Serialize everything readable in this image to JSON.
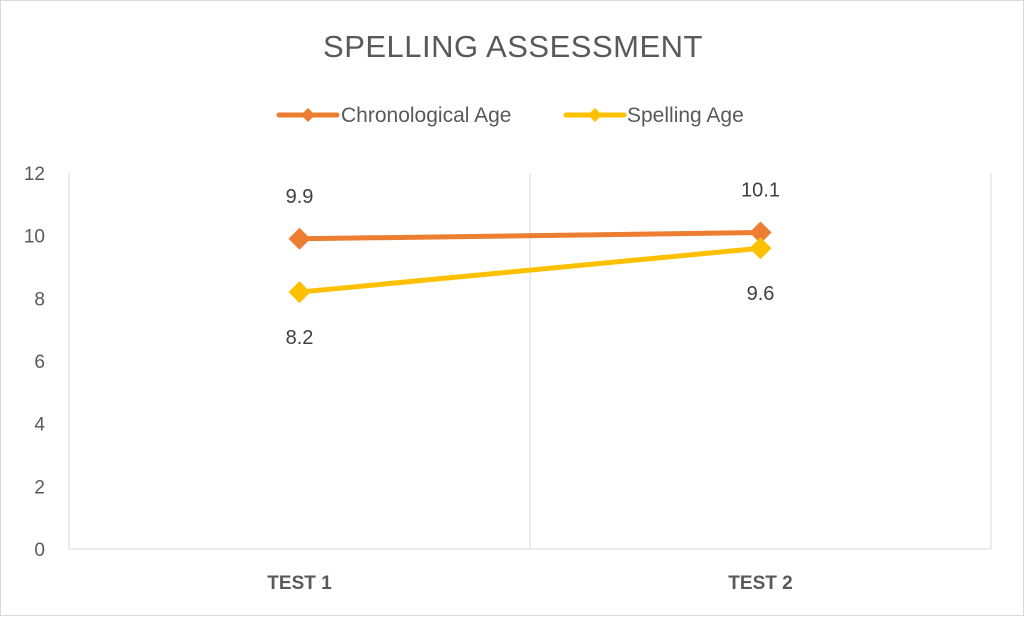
{
  "chart_data": {
    "type": "line",
    "title": "SPELLING ASSESSMENT",
    "categories": [
      "TEST 1",
      "TEST 2"
    ],
    "series": [
      {
        "name": "Chronological Age",
        "values": [
          9.9,
          10.1
        ],
        "color": "#ED7D31",
        "labels": [
          "9.9",
          "10.1"
        ],
        "label_position": "above"
      },
      {
        "name": "Spelling Age",
        "values": [
          8.2,
          9.6
        ],
        "color": "#FFC000",
        "labels": [
          "8.2",
          "9.6"
        ],
        "label_position": "below"
      }
    ],
    "xlabel": "",
    "ylabel": "",
    "ylim": [
      0,
      12
    ],
    "yticks": [
      0,
      2,
      4,
      6,
      8,
      10,
      12
    ],
    "ytick_labels": [
      "0",
      "2",
      "4",
      "6",
      "8",
      "10",
      "12"
    ],
    "grid": "vertical category lines",
    "legend": "top",
    "marker": "diamond"
  }
}
